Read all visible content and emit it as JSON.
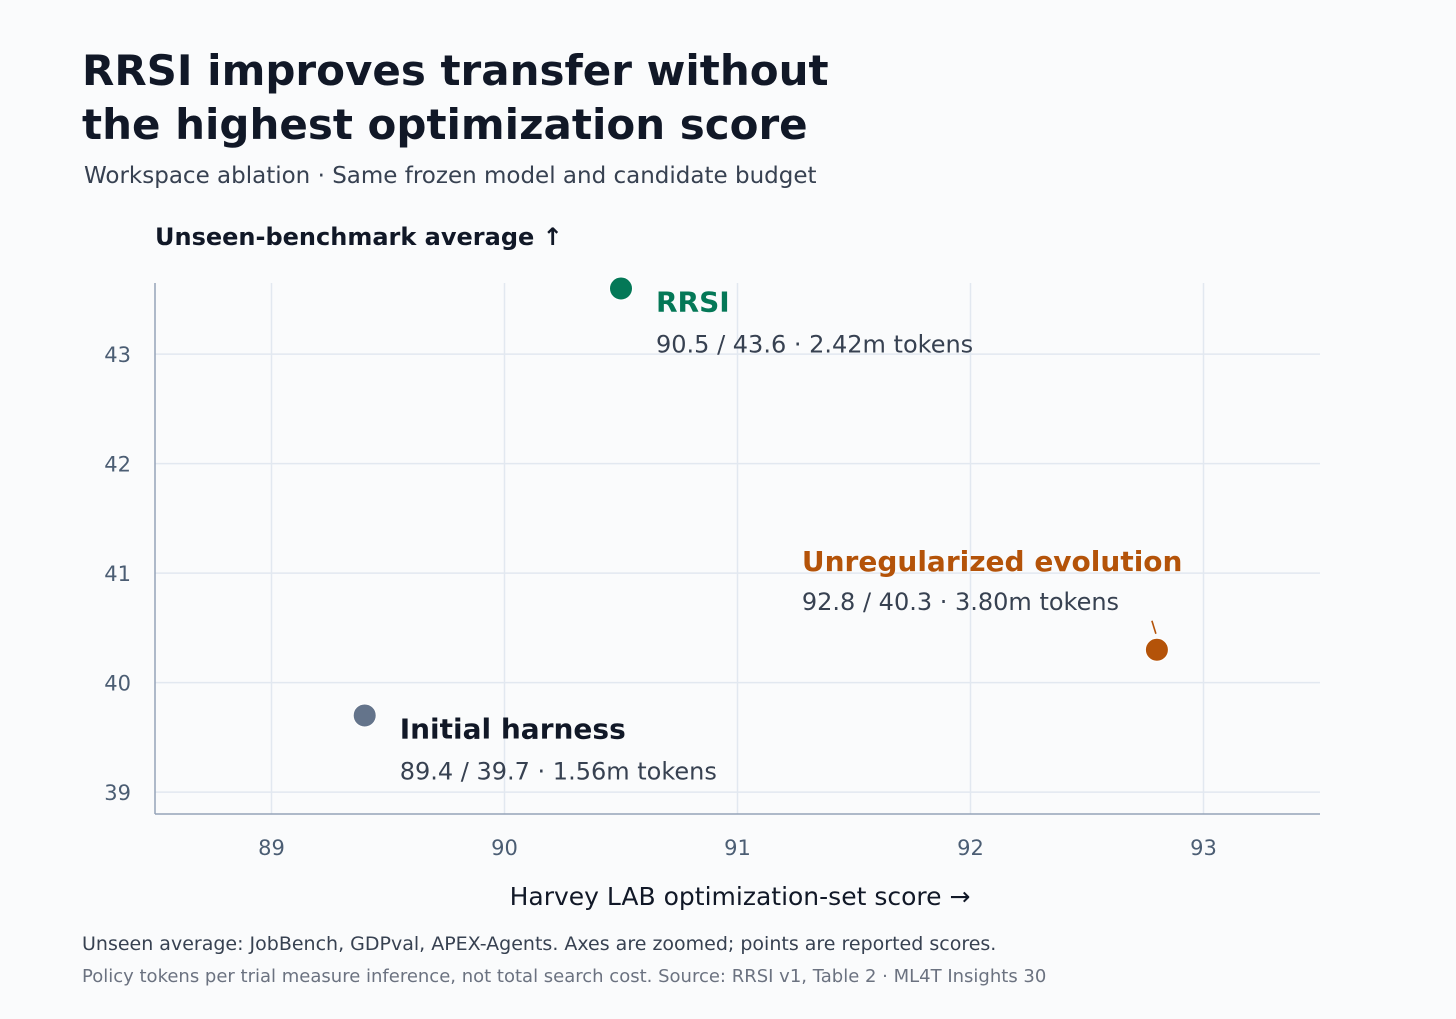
{
  "header": {
    "title_line1": "RRSI improves transfer without",
    "title_line2": "the highest optimization score",
    "subtitle": "Workspace ablation · Same frozen model and candidate budget"
  },
  "footer": {
    "note1": "Unseen average: JobBench, GDPval, APEX-Agents. Axes are zoomed; points are reported scores.",
    "note2": "Policy tokens per trial measure inference, not total search cost. Source: RRSI v1, Table 2 · ML4T Insights 30"
  },
  "chart_data": {
    "type": "scatter",
    "xlabel": "Harvey LAB optimization-set score →",
    "ylabel": "Unseen-benchmark average ↑",
    "xlim": [
      88.5,
      93.5
    ],
    "ylim": [
      38.8,
      43.65
    ],
    "xticks": [
      89,
      90,
      91,
      92,
      93
    ],
    "yticks": [
      39,
      40,
      41,
      42,
      43
    ],
    "grid": true,
    "points": [
      {
        "name": "Initial harness",
        "x": 89.4,
        "y": 39.7,
        "detail": "89.4 / 39.7 · 1.56m tokens",
        "color": "#64748b",
        "label_color": "#111827",
        "label_side": "right"
      },
      {
        "name": "RRSI",
        "x": 90.5,
        "y": 43.6,
        "detail": "90.5 / 43.6 · 2.42m tokens",
        "color": "#047857",
        "label_color": "#047857",
        "label_side": "right"
      },
      {
        "name": "Unregularized evolution",
        "x": 92.8,
        "y": 40.3,
        "detail": "92.8 / 40.3 · 3.80m tokens",
        "color": "#b45309",
        "label_color": "#b45309",
        "label_side": "above-left"
      }
    ],
    "colors": {
      "axis": "#94a3b8",
      "grid": "#e2e8f0",
      "tick_label": "#4b5d73",
      "detail_text": "#374151"
    }
  }
}
